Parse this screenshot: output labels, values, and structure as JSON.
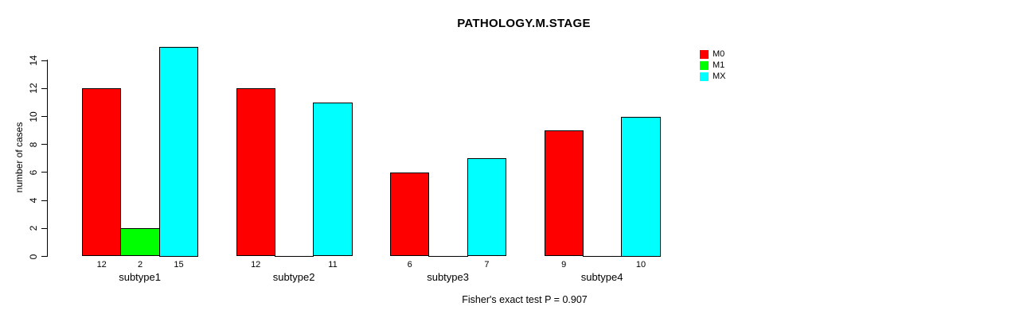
{
  "chart_data": {
    "type": "bar",
    "grouped": true,
    "title": "PATHOLOGY.M.STAGE",
    "xlabel": "",
    "ylabel": "number of cases",
    "categories": [
      "subtype1",
      "subtype2",
      "subtype3",
      "subtype4"
    ],
    "series": [
      {
        "name": "M0",
        "color": "#FF0000",
        "values": [
          12,
          12,
          6,
          9
        ]
      },
      {
        "name": "M1",
        "color": "#00FF00",
        "values": [
          2,
          0,
          0,
          0
        ]
      },
      {
        "name": "MX",
        "color": "#00FFFF",
        "values": [
          15,
          11,
          7,
          10
        ]
      }
    ],
    "bar_value_labels_shown_for_nonzero_only": true,
    "y_ticks": [
      0,
      2,
      4,
      6,
      8,
      10,
      12,
      14
    ],
    "ylim": [
      0,
      15
    ],
    "grid": false,
    "legend_position": "top-right",
    "annotation": "Fisher's exact test P = 0.907"
  },
  "colors": {
    "background": "#FFFFFF",
    "axis": "#000000",
    "text": "#000000"
  }
}
